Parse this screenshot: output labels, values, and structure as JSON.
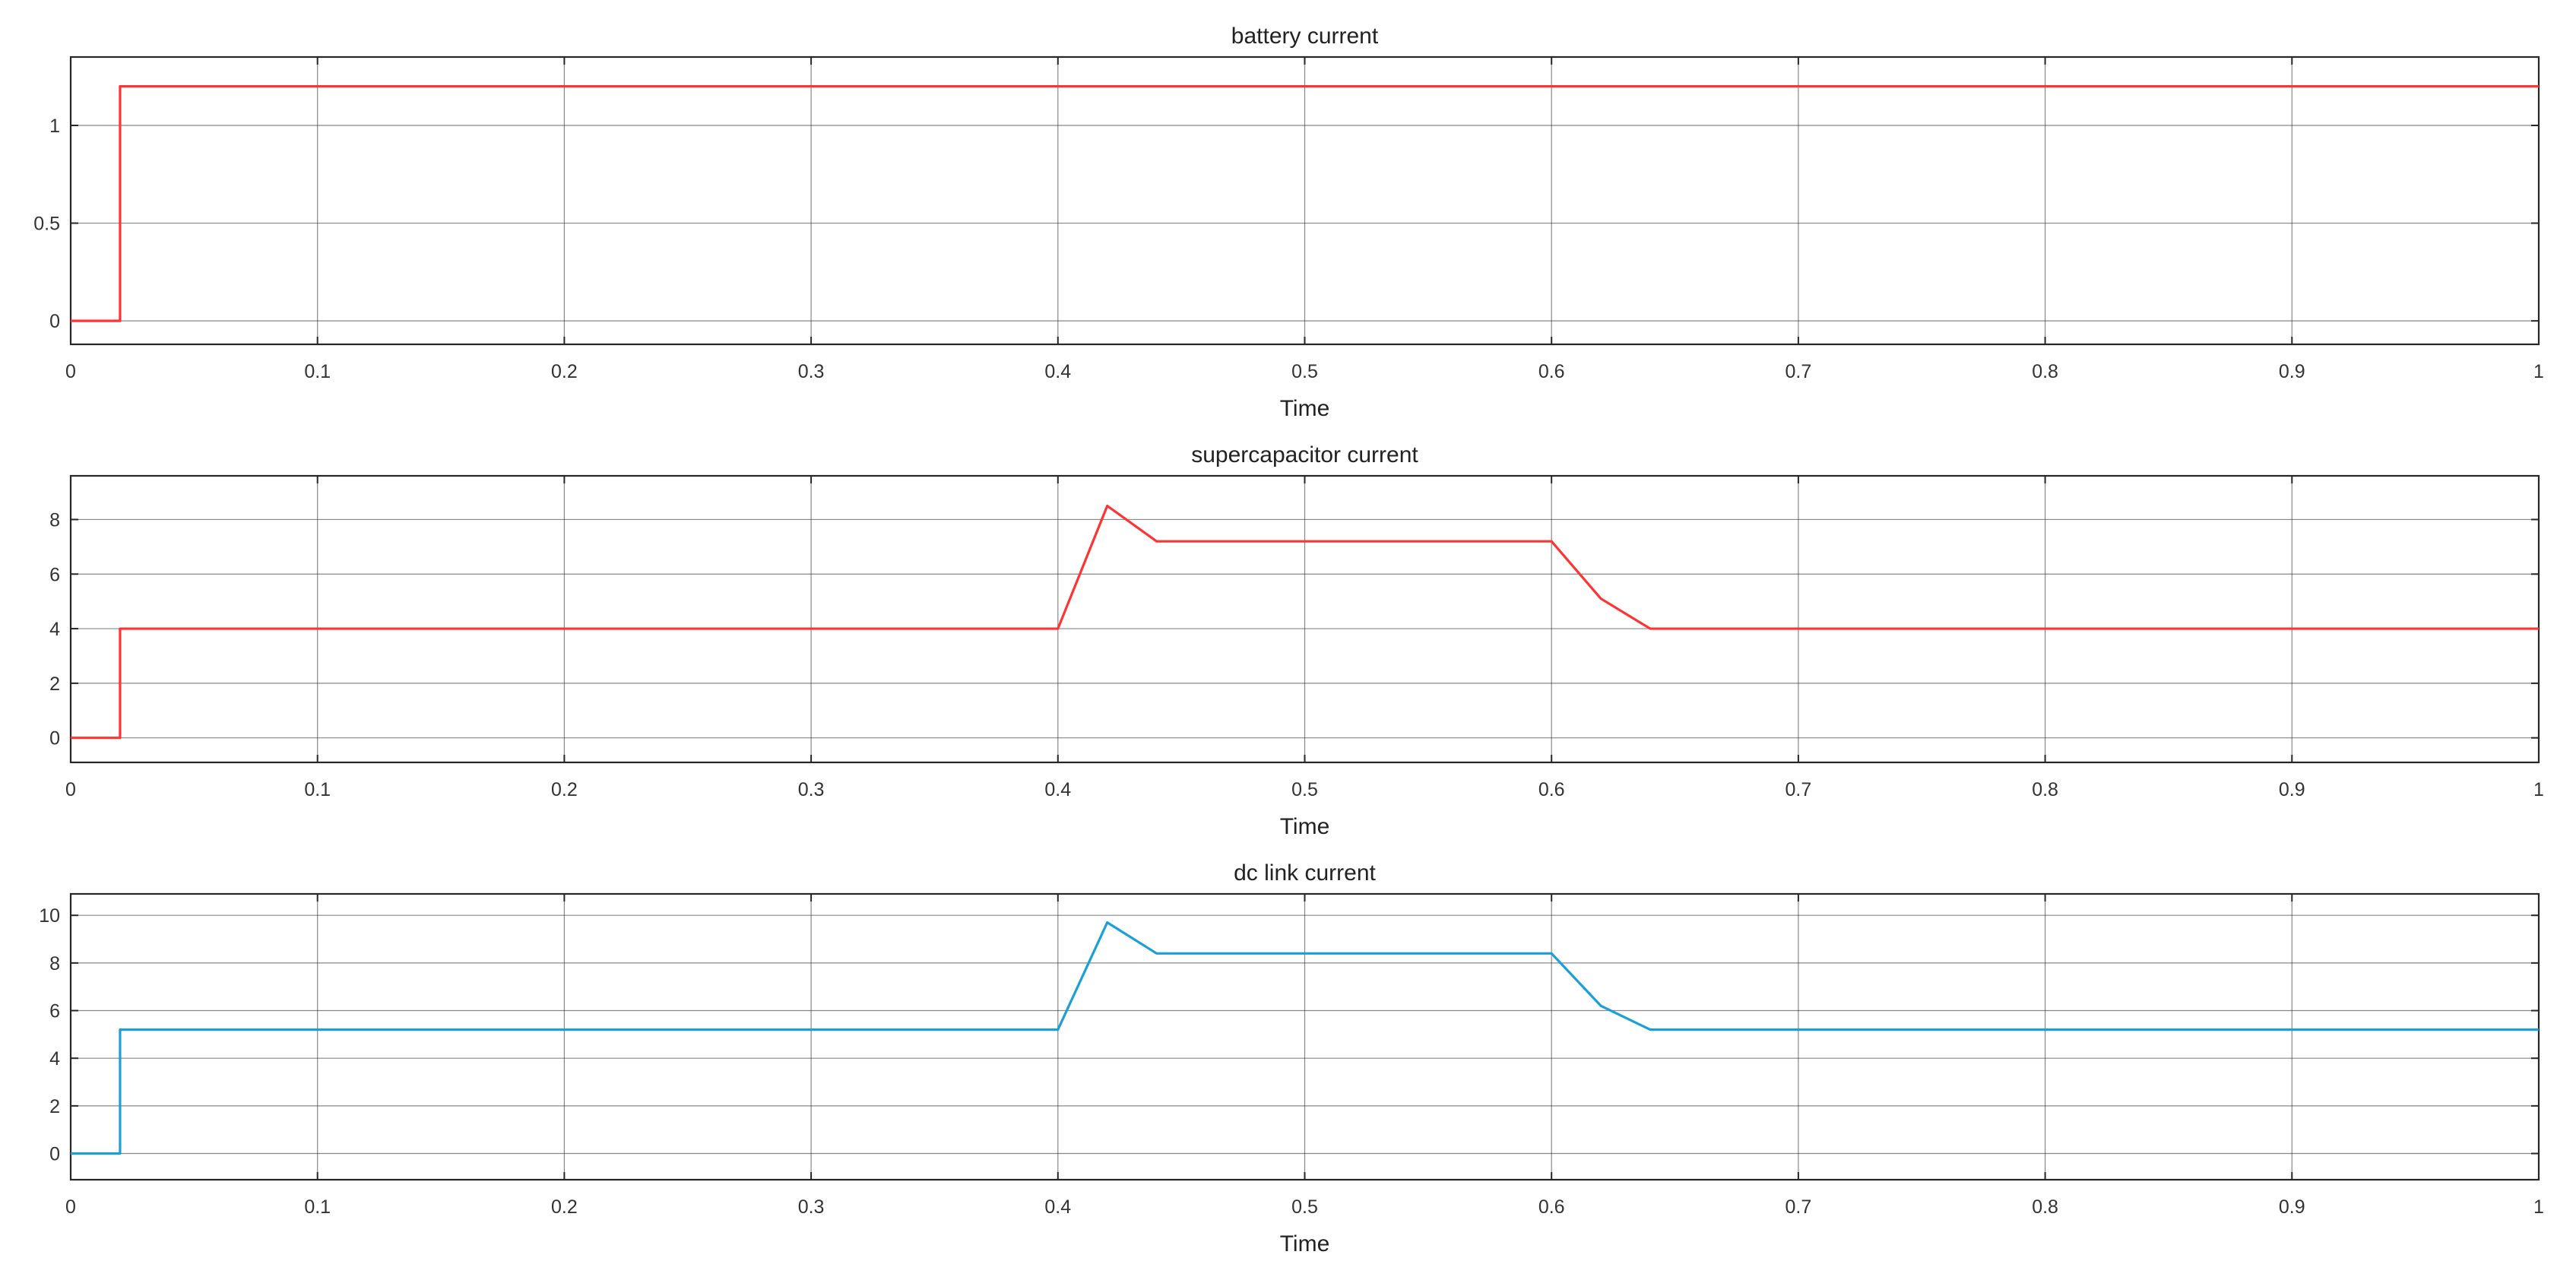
{
  "chart_data": [
    {
      "type": "line",
      "title": "battery current",
      "xlabel": "Time",
      "ylabel": "",
      "xlim": [
        0,
        1
      ],
      "ylim": [
        -0.12,
        1.35
      ],
      "xticks": [
        0,
        0.1,
        0.2,
        0.3,
        0.4,
        0.5,
        0.6,
        0.7,
        0.8,
        0.9,
        1
      ],
      "xtick_labels": [
        "0",
        "0.1",
        "0.2",
        "0.3",
        "0.4",
        "0.5",
        "0.6",
        "0.7",
        "0.8",
        "0.9",
        "1"
      ],
      "yticks": [
        0,
        0.5,
        1
      ],
      "ytick_labels": [
        "0",
        "0.5",
        "1"
      ],
      "grid": true,
      "series": [
        {
          "color": "#ff3333",
          "x": [
            0,
            0.02,
            0.02,
            1
          ],
          "y": [
            0,
            0,
            1.2,
            1.2
          ]
        }
      ]
    },
    {
      "type": "line",
      "title": "supercapacitor current",
      "xlabel": "Time",
      "ylabel": "",
      "xlim": [
        0,
        1
      ],
      "ylim": [
        -0.9,
        9.6
      ],
      "xticks": [
        0,
        0.1,
        0.2,
        0.3,
        0.4,
        0.5,
        0.6,
        0.7,
        0.8,
        0.9,
        1
      ],
      "xtick_labels": [
        "0",
        "0.1",
        "0.2",
        "0.3",
        "0.4",
        "0.5",
        "0.6",
        "0.7",
        "0.8",
        "0.9",
        "1"
      ],
      "yticks": [
        0,
        2,
        4,
        6,
        8
      ],
      "ytick_labels": [
        "0",
        "2",
        "4",
        "6",
        "8"
      ],
      "grid": true,
      "series": [
        {
          "color": "#ff3333",
          "x": [
            0,
            0.02,
            0.02,
            0.4,
            0.42,
            0.44,
            0.6,
            0.62,
            0.64,
            1
          ],
          "y": [
            0,
            0,
            4,
            4,
            8.5,
            7.2,
            7.2,
            5.1,
            4,
            4
          ]
        }
      ]
    },
    {
      "type": "line",
      "title": "dc link current",
      "xlabel": "Time",
      "ylabel": "",
      "xlim": [
        0,
        1
      ],
      "ylim": [
        -1.1,
        10.9
      ],
      "xticks": [
        0,
        0.1,
        0.2,
        0.3,
        0.4,
        0.5,
        0.6,
        0.7,
        0.8,
        0.9,
        1
      ],
      "xtick_labels": [
        "0",
        "0.1",
        "0.2",
        "0.3",
        "0.4",
        "0.5",
        "0.6",
        "0.7",
        "0.8",
        "0.9",
        "1"
      ],
      "yticks": [
        0,
        2,
        4,
        6,
        8,
        10
      ],
      "ytick_labels": [
        "0",
        "2",
        "4",
        "6",
        "8",
        "10"
      ],
      "grid": true,
      "series": [
        {
          "color": "#1a9fd6",
          "x": [
            0,
            0.02,
            0.02,
            0.4,
            0.42,
            0.44,
            0.6,
            0.62,
            0.64,
            1
          ],
          "y": [
            0,
            0,
            5.2,
            5.2,
            9.7,
            8.4,
            8.4,
            6.2,
            5.2,
            5.2
          ]
        }
      ]
    }
  ]
}
